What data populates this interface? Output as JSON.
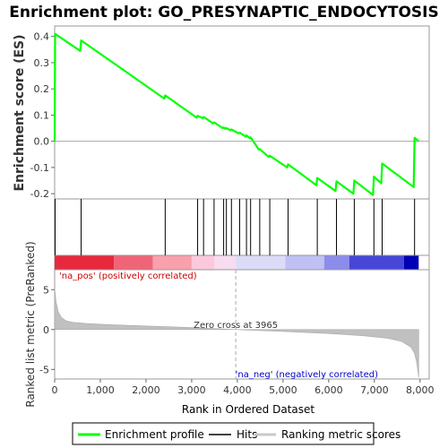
{
  "chart_data": {
    "type": "line",
    "title": "Enrichment plot: GO_PRESYNAPTIC_ENDOCYTOSIS",
    "xlabel": "Rank in Ordered Dataset",
    "ylabel_top": "Enrichment score (ES)",
    "ylabel_bottom": "Ranked list metric (PreRanked)",
    "xlim": [
      0,
      8200
    ],
    "es_ylim": [
      -0.22,
      0.44
    ],
    "metric_ylim": [
      -6.2,
      7.5
    ],
    "x_ticks": [
      0,
      1000,
      2000,
      3000,
      4000,
      5000,
      6000,
      7000,
      8000
    ],
    "x_tick_labels": [
      "0",
      "1,000",
      "2,000",
      "3,000",
      "4,000",
      "5,000",
      "6,000",
      "7,000",
      "8,000"
    ],
    "es_ticks": [
      0.4,
      0.3,
      0.2,
      0.1,
      0.0,
      -0.1,
      -0.2
    ],
    "es_tick_labels": [
      "0.4",
      "0.3",
      "0.2",
      "0.1",
      "0.0",
      "-0.1",
      "-0.2"
    ],
    "metric_ticks": [
      5,
      0,
      -5
    ],
    "metric_tick_labels": [
      "5",
      "0",
      "-5"
    ],
    "total_genes": 7970,
    "zero_cross": 3965,
    "zero_cross_label": "Zero cross at 3965",
    "pos_label": "'na_pos' (positively correlated)",
    "neg_label": "'na_neg' (negatively correlated)",
    "hits": [
      10,
      580,
      2420,
      3130,
      3260,
      3490,
      3700,
      3760,
      3870,
      4050,
      4200,
      4290,
      4490,
      4710,
      5110,
      5750,
      6170,
      6560,
      6990,
      7170,
      7880
    ],
    "es_points": [
      [
        0,
        0.0
      ],
      [
        10,
        0.41
      ],
      [
        560,
        0.345
      ],
      [
        580,
        0.385
      ],
      [
        2400,
        0.163
      ],
      [
        2420,
        0.175
      ],
      [
        3110,
        0.09
      ],
      [
        3130,
        0.097
      ],
      [
        3240,
        0.088
      ],
      [
        3260,
        0.093
      ],
      [
        3470,
        0.068
      ],
      [
        3490,
        0.072
      ],
      [
        3680,
        0.05
      ],
      [
        3700,
        0.053
      ],
      [
        3740,
        0.048
      ],
      [
        3760,
        0.05
      ],
      [
        3850,
        0.042
      ],
      [
        3870,
        0.045
      ],
      [
        4030,
        0.03
      ],
      [
        4050,
        0.033
      ],
      [
        4180,
        0.018
      ],
      [
        4200,
        0.022
      ],
      [
        4270,
        0.012
      ],
      [
        4290,
        0.015
      ],
      [
        4470,
        -0.032
      ],
      [
        4490,
        -0.03
      ],
      [
        4690,
        -0.06
      ],
      [
        4710,
        -0.055
      ],
      [
        5090,
        -0.1
      ],
      [
        5110,
        -0.088
      ],
      [
        5730,
        -0.168
      ],
      [
        5750,
        -0.14
      ],
      [
        6150,
        -0.19
      ],
      [
        6170,
        -0.153
      ],
      [
        6540,
        -0.2
      ],
      [
        6560,
        -0.15
      ],
      [
        6970,
        -0.205
      ],
      [
        6990,
        -0.135
      ],
      [
        7150,
        -0.16
      ],
      [
        7170,
        -0.085
      ],
      [
        7860,
        -0.175
      ],
      [
        7880,
        0.013
      ],
      [
        7970,
        0.0
      ]
    ],
    "metric_profile": [
      [
        0,
        5.2
      ],
      [
        30,
        3.5
      ],
      [
        80,
        2.2
      ],
      [
        150,
        1.5
      ],
      [
        250,
        1.1
      ],
      [
        400,
        0.9
      ],
      [
        700,
        0.75
      ],
      [
        1200,
        0.6
      ],
      [
        2000,
        0.45
      ],
      [
        3000,
        0.25
      ],
      [
        3965,
        0.0
      ],
      [
        5000,
        -0.25
      ],
      [
        6000,
        -0.5
      ],
      [
        6800,
        -0.8
      ],
      [
        7300,
        -1.1
      ],
      [
        7600,
        -1.5
      ],
      [
        7800,
        -2.2
      ],
      [
        7880,
        -3.0
      ],
      [
        7930,
        -4.2
      ],
      [
        7970,
        -6.0
      ]
    ],
    "colorbar": [
      {
        "from": 0,
        "to": 1300,
        "color": "#e8283c"
      },
      {
        "from": 1300,
        "to": 2150,
        "color": "#f06478"
      },
      {
        "from": 2150,
        "to": 3000,
        "color": "#f8a0ac"
      },
      {
        "from": 3000,
        "to": 3500,
        "color": "#fcc8dc"
      },
      {
        "from": 3500,
        "to": 3965,
        "color": "#f8dcf0"
      },
      {
        "from": 3965,
        "to": 5050,
        "color": "#dcdcf8"
      },
      {
        "from": 5050,
        "to": 5900,
        "color": "#c0c0f4"
      },
      {
        "from": 5900,
        "to": 6450,
        "color": "#8c8cec"
      },
      {
        "from": 6450,
        "to": 7650,
        "color": "#4646d8"
      },
      {
        "from": 7650,
        "to": 7970,
        "color": "#0000b4"
      }
    ],
    "legend": [
      {
        "label": "Enrichment profile",
        "color": "#00ff00"
      },
      {
        "label": "Hits",
        "color": "#000000"
      },
      {
        "label": "Ranking metric scores",
        "color": "#c8c8c8"
      }
    ]
  }
}
